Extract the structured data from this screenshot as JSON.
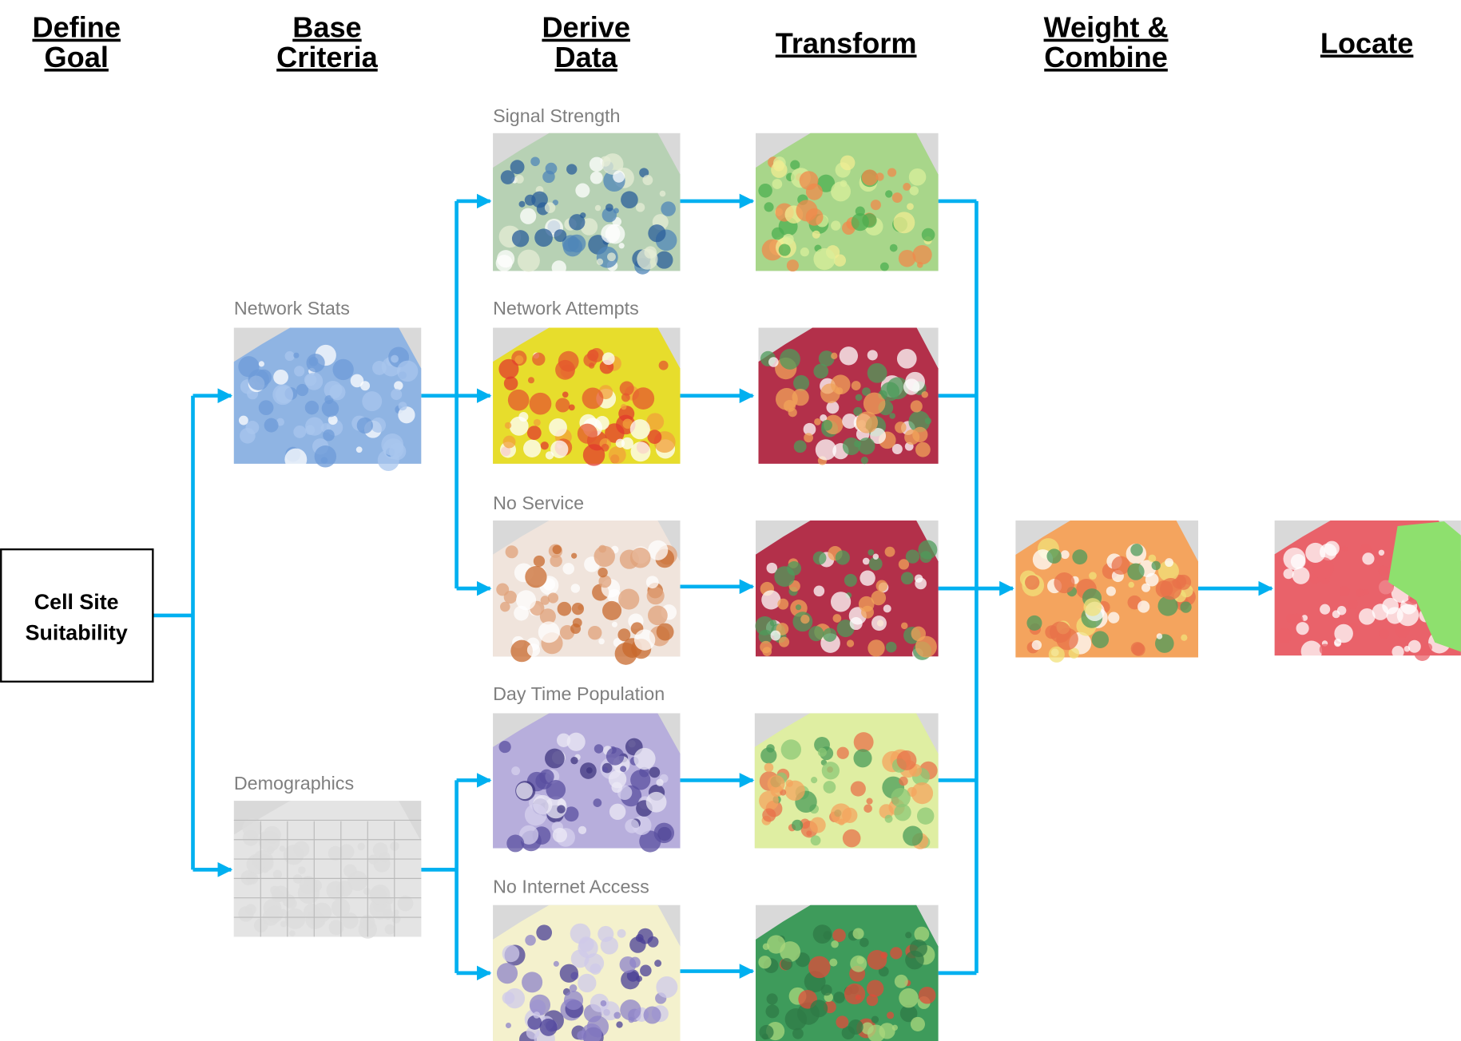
{
  "columns": [
    [
      "Define",
      "Goal"
    ],
    [
      "Base",
      "Criteria"
    ],
    [
      "Derive",
      "Data"
    ],
    [
      "Transform"
    ],
    [
      "Weight &",
      "Combine"
    ],
    [
      "Locate"
    ]
  ],
  "goal": [
    "Cell Site",
    "Suitability"
  ],
  "base_criteria": [
    "Network Stats",
    "Demographics"
  ],
  "derived_data": [
    "Signal Strength",
    "Network Attempts",
    "No Service",
    "Day Time Population",
    "No Internet Access"
  ]
}
